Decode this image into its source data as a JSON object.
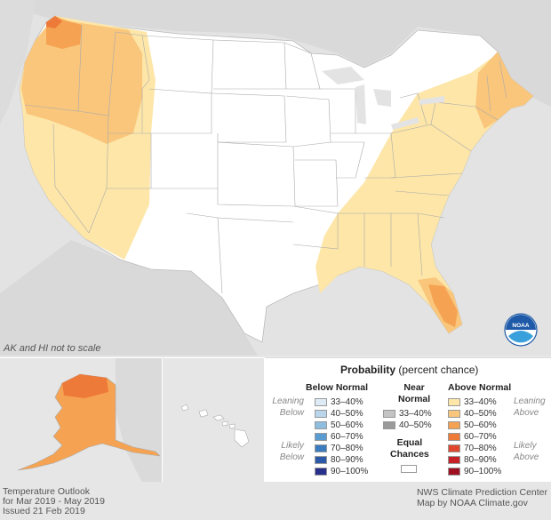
{
  "note": "AK and HI not to scale",
  "legend": {
    "title_bold": "Probability",
    "title_rest": " (percent chance)",
    "below": {
      "heading": "Below Normal",
      "leaning_label": [
        "Leaning",
        "Below"
      ],
      "likely_label": [
        "Likely",
        "Below"
      ],
      "items": [
        {
          "label": "33–40%",
          "color": "#deebf7"
        },
        {
          "label": "40–50%",
          "color": "#b9d6ec"
        },
        {
          "label": "50–60%",
          "color": "#8fbde0"
        },
        {
          "label": "60–70%",
          "color": "#5a9bd1"
        },
        {
          "label": "70–80%",
          "color": "#3b7cc0"
        },
        {
          "label": "80–90%",
          "color": "#2c5aa8"
        },
        {
          "label": "90–100%",
          "color": "#27308a"
        }
      ]
    },
    "near": {
      "heading": [
        "Near",
        "Normal"
      ],
      "items": [
        {
          "label": "33–40%",
          "color": "#c4c4c4"
        },
        {
          "label": "40–50%",
          "color": "#9a9a9a"
        }
      ],
      "equal_heading": [
        "Equal",
        "Chances"
      ],
      "equal_color": "#ffffff"
    },
    "above": {
      "heading": "Above Normal",
      "leaning_label": [
        "Leaning",
        "Above"
      ],
      "likely_label": [
        "Likely",
        "Above"
      ],
      "items": [
        {
          "label": "33–40%",
          "color": "#fde6a8"
        },
        {
          "label": "40–50%",
          "color": "#f9c67c"
        },
        {
          "label": "50–60%",
          "color": "#f5a352"
        },
        {
          "label": "60–70%",
          "color": "#ee7a3a"
        },
        {
          "label": "70–80%",
          "color": "#e0482d"
        },
        {
          "label": "80–90%",
          "color": "#c62127"
        },
        {
          "label": "90–100%",
          "color": "#9d0f21"
        }
      ]
    }
  },
  "footer": {
    "left": [
      "Temperature Outlook",
      "for Mar 2019 - May 2019",
      "Issued 21 Feb 2019"
    ],
    "right": [
      "NWS Climate Prediction Center",
      "Map by NOAA Climate.gov"
    ]
  },
  "logo_text": "NOAA"
}
